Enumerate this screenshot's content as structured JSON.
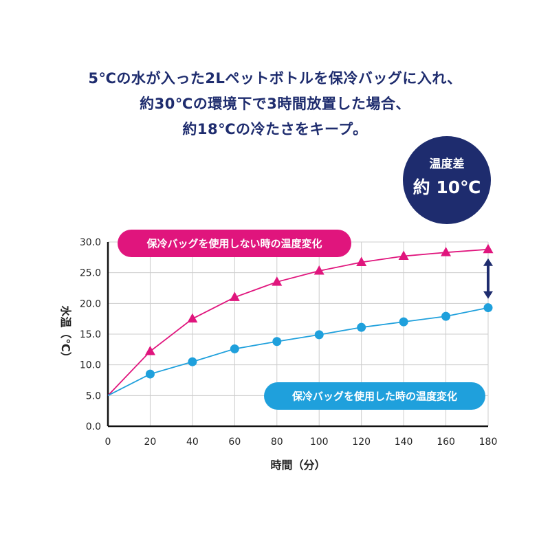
{
  "headline": {
    "line1": "5℃の水が入った2Lペットボトルを保冷バッグに入れ、",
    "line2": "約30℃の環境下で3時間放置した場合、",
    "line3": "約18℃の冷たさをキープ。"
  },
  "badge": {
    "label": "温度差",
    "value": "約 10℃"
  },
  "colors": {
    "without_bag": "#e0157d",
    "with_bag": "#1fa0dc",
    "navy": "#1e2c6e",
    "grid": "#cccccc"
  },
  "chart_data": {
    "type": "line",
    "x": [
      0,
      20,
      40,
      60,
      80,
      100,
      120,
      140,
      160,
      180
    ],
    "series": [
      {
        "name": "保冷バッグを使用しない時の温度変化",
        "marker": "triangle",
        "values": [
          5.0,
          12.2,
          17.5,
          21.0,
          23.5,
          25.3,
          26.7,
          27.7,
          28.3,
          28.8
        ]
      },
      {
        "name": "保冷バッグを使用した時の温度変化",
        "marker": "circle",
        "values": [
          5.0,
          8.5,
          10.5,
          12.6,
          13.8,
          14.9,
          16.1,
          17.0,
          17.9,
          19.3
        ]
      }
    ],
    "xlabel": "時間（分）",
    "ylabel": "水温（℃）",
    "xlim": [
      0,
      180
    ],
    "ylim": [
      0,
      30
    ],
    "xticks": [
      "0",
      "20",
      "40",
      "60",
      "80",
      "100",
      "120",
      "140",
      "160",
      "180"
    ],
    "yticks": [
      "0.0",
      "5.0",
      "10.0",
      "15.0",
      "20.0",
      "25.0",
      "30.0"
    ],
    "grid": true,
    "annotation": "double-headed arrow at 180 min between series"
  }
}
